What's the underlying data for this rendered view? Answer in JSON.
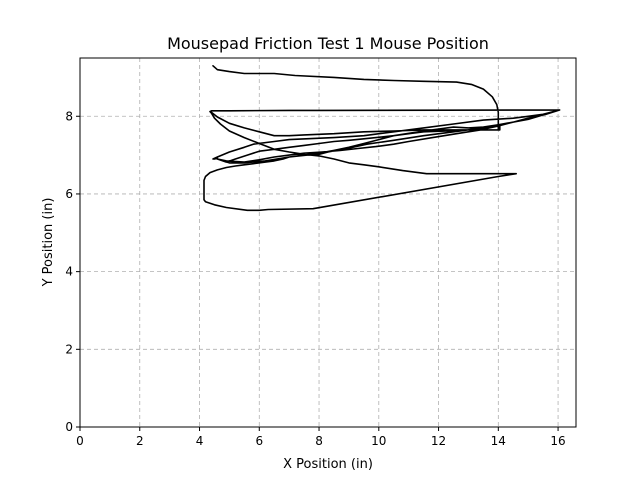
{
  "chart_data": {
    "type": "line",
    "title": "Mousepad Friction Test 1 Mouse Position",
    "xlabel": "X Position (in)",
    "ylabel": "Y Position (in)",
    "xlim": [
      0,
      16.6
    ],
    "ylim": [
      0,
      9.5
    ],
    "xticks": [
      0,
      2,
      4,
      6,
      8,
      10,
      12,
      14,
      16
    ],
    "yticks": [
      0,
      2,
      4,
      6,
      8
    ],
    "grid": true,
    "color": "#000000",
    "series": [
      {
        "x": [
          4.45,
          4.6,
          5.0,
          5.5,
          6.5,
          7.2,
          8.5,
          9.5,
          10.5,
          11.5,
          12.6,
          13.1,
          13.5,
          13.8,
          13.95,
          14.0,
          14.0,
          13.5,
          12.5,
          11.5,
          10.5,
          9.5,
          8.5,
          7.5,
          7.0,
          6.5,
          6.0,
          5.5,
          5.0,
          4.6,
          4.4,
          4.35,
          4.4,
          5.0,
          7.0,
          8.0,
          16.05,
          15.6,
          15.0,
          14.5,
          14.0,
          13.4,
          12.6,
          11.8,
          11.0,
          10.5,
          9.9,
          9.3,
          8.7,
          8.1,
          7.5,
          7.0,
          6.5,
          6.0,
          5.5,
          4.9,
          4.6,
          4.6,
          4.5,
          4.45,
          4.6,
          5.0,
          5.5,
          5.8,
          6.5,
          7.0,
          8.5,
          9.5,
          10.5,
          11.5,
          12.5,
          13.5,
          14.5,
          15.0,
          15.5,
          16.05,
          15.0,
          14.0,
          13.5,
          13.0,
          12.5,
          11.5,
          10.5,
          9.5,
          9.0,
          8.5,
          8.0,
          7.5,
          7.0,
          6.5,
          6.0,
          5.6,
          5.2,
          4.9,
          4.6,
          5.0,
          5.5,
          6.2,
          7.0,
          7.6,
          8.0,
          8.3,
          9.0,
          9.6,
          10.5,
          11.5,
          12.5,
          13.5,
          14.05,
          14.05,
          13.0,
          12.3,
          11.5,
          11.0,
          10.5,
          10.0,
          9.5,
          9.0,
          8.5,
          8.0,
          7.5,
          7.0,
          6.8,
          6.5,
          6.2,
          5.8,
          5.5,
          5.2,
          4.9,
          4.6,
          4.35,
          4.2,
          4.15,
          4.15,
          4.2,
          4.5,
          4.9,
          5.6,
          6.0,
          6.3,
          7.8,
          14.0,
          14.6,
          14.25,
          13.0,
          11.6,
          10.8,
          10.0,
          9.5,
          9.0,
          8.5,
          8.0,
          7.5,
          7.0,
          6.5,
          6.0,
          5.5,
          5.0,
          4.7,
          4.5,
          4.4,
          4.35
        ],
        "y": [
          9.3,
          9.2,
          9.15,
          9.1,
          9.1,
          9.05,
          9.0,
          8.95,
          8.92,
          8.9,
          8.88,
          8.82,
          8.7,
          8.5,
          8.3,
          8.1,
          7.65,
          7.65,
          7.65,
          7.65,
          7.62,
          7.6,
          7.55,
          7.52,
          7.5,
          7.5,
          7.6,
          7.7,
          7.82,
          7.98,
          8.1,
          8.12,
          8.14,
          8.14,
          8.15,
          8.15,
          8.16,
          8.05,
          7.95,
          7.85,
          7.75,
          7.65,
          7.55,
          7.45,
          7.35,
          7.28,
          7.22,
          7.17,
          7.12,
          7.08,
          7.05,
          7.0,
          6.95,
          6.88,
          6.82,
          6.85,
          6.9,
          6.92,
          6.9,
          6.9,
          6.95,
          7.08,
          7.2,
          7.28,
          7.35,
          7.4,
          7.45,
          7.5,
          7.6,
          7.7,
          7.8,
          7.9,
          7.95,
          8.0,
          8.05,
          8.16,
          7.92,
          7.78,
          7.72,
          7.7,
          7.72,
          7.62,
          7.5,
          7.42,
          7.38,
          7.35,
          7.3,
          7.25,
          7.2,
          7.15,
          7.1,
          7.0,
          6.9,
          6.82,
          6.9,
          6.8,
          6.8,
          6.85,
          6.95,
          7.0,
          7.02,
          7.08,
          7.18,
          7.28,
          7.38,
          7.5,
          7.6,
          7.7,
          7.75,
          7.65,
          7.65,
          7.62,
          7.6,
          7.55,
          7.5,
          7.4,
          7.3,
          7.2,
          7.12,
          7.05,
          7.0,
          6.95,
          6.9,
          6.85,
          6.82,
          6.78,
          6.75,
          6.72,
          6.68,
          6.62,
          6.55,
          6.45,
          6.35,
          5.85,
          5.8,
          5.72,
          5.65,
          5.58,
          5.58,
          5.6,
          5.62,
          6.45,
          6.52,
          6.52,
          6.52,
          6.52,
          6.6,
          6.7,
          6.75,
          6.8,
          6.9,
          6.98,
          7.02,
          7.08,
          7.15,
          7.3,
          7.45,
          7.62,
          7.8,
          7.95,
          8.08,
          8.12
        ]
      }
    ]
  }
}
